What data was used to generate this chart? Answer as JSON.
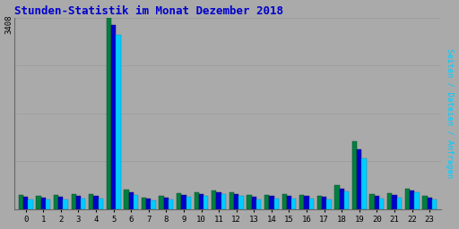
{
  "title": "Stunden-Statistik im Monat Dezember 2018",
  "ylabel_right": "Seiten / Dateien / Anfragen",
  "ytick_label_top": "3408",
  "hours": [
    0,
    1,
    2,
    3,
    4,
    5,
    6,
    7,
    8,
    9,
    10,
    11,
    12,
    13,
    14,
    15,
    16,
    17,
    18,
    19,
    20,
    21,
    22,
    23
  ],
  "seiten": [
    250,
    240,
    250,
    265,
    270,
    3408,
    340,
    205,
    230,
    280,
    300,
    330,
    300,
    245,
    255,
    260,
    255,
    240,
    420,
    1200,
    265,
    280,
    360,
    230
  ],
  "dateien": [
    215,
    205,
    215,
    230,
    240,
    3280,
    300,
    180,
    200,
    255,
    270,
    305,
    270,
    215,
    230,
    235,
    230,
    215,
    370,
    1060,
    235,
    255,
    330,
    200
  ],
  "anfragen": [
    170,
    165,
    170,
    185,
    195,
    3100,
    255,
    150,
    165,
    215,
    235,
    270,
    240,
    175,
    190,
    195,
    190,
    175,
    310,
    900,
    195,
    210,
    295,
    165
  ],
  "color_seiten": "#008040",
  "color_dateien": "#0000CC",
  "color_anfragen": "#00CCFF",
  "bg_color": "#AAAAAA",
  "plot_bg_color": "#AAAAAA",
  "title_color": "#0000CC",
  "ylabel_right_color": "#00CCFF",
  "ylabel_left_color": "#333333",
  "grid_color": "#999999",
  "bar_width": 0.27,
  "ylim": [
    0,
    3408
  ],
  "yticks": [
    852,
    1704,
    2556,
    3408
  ],
  "figsize": [
    5.12,
    2.56
  ],
  "dpi": 100
}
